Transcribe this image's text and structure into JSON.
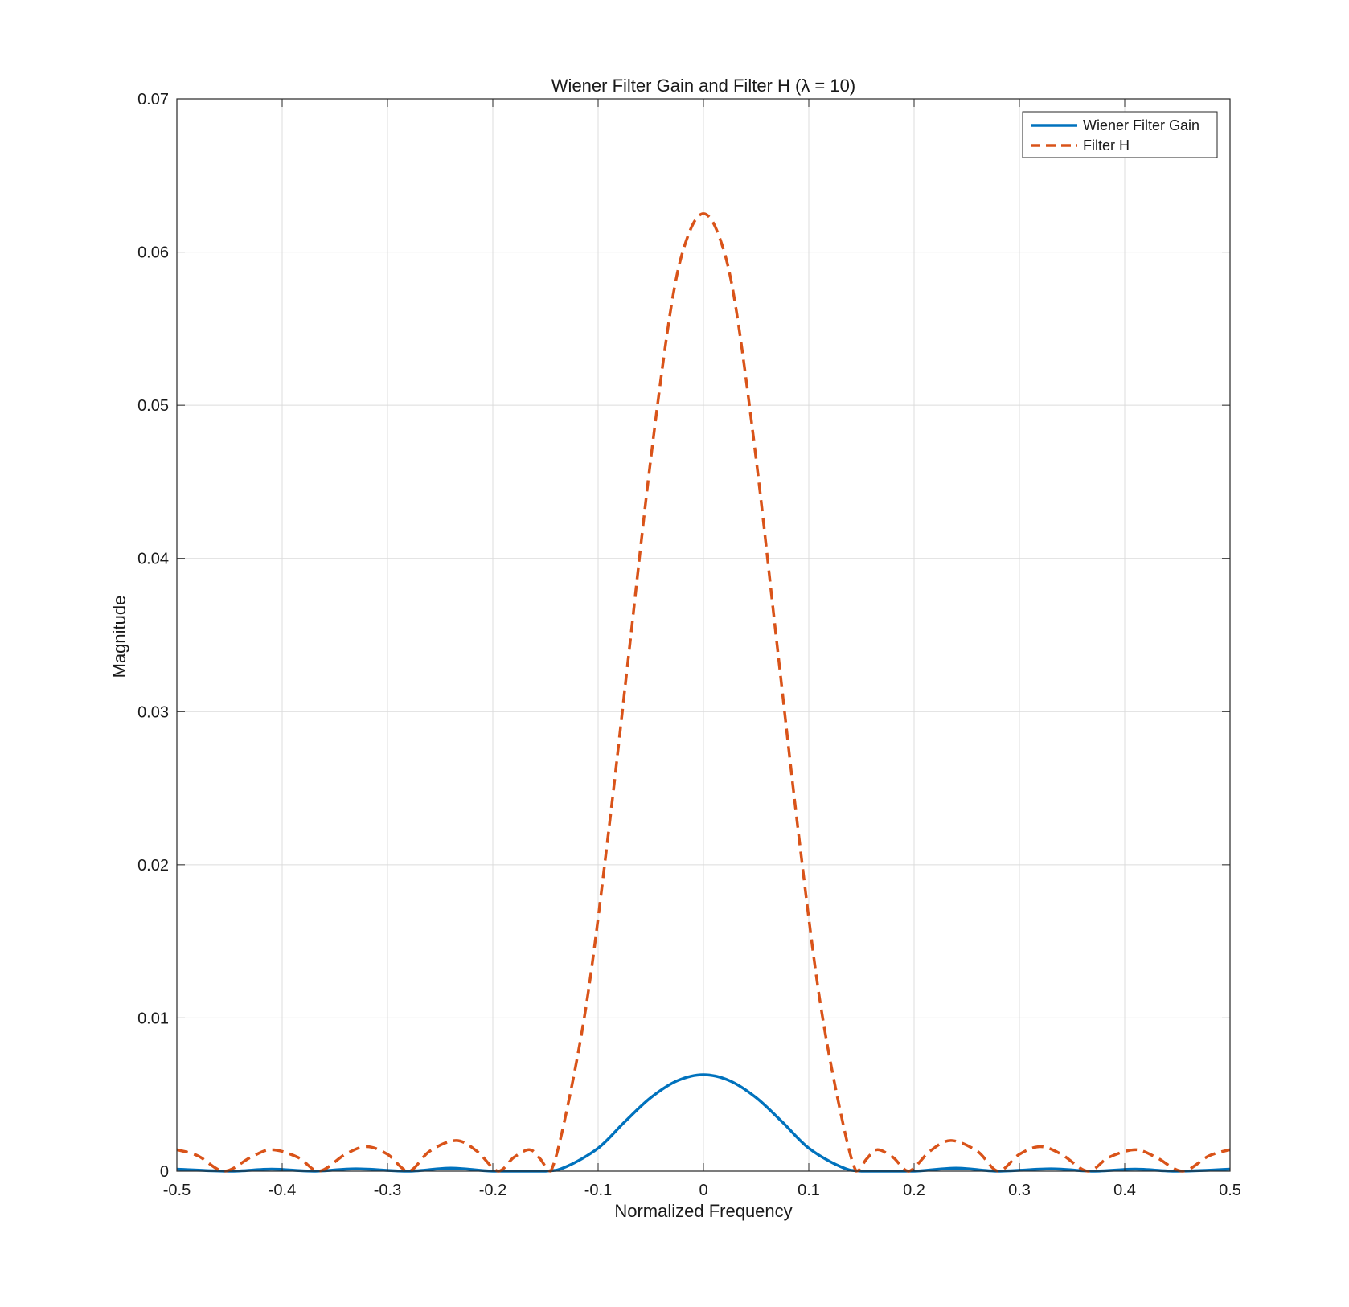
{
  "chart_data": {
    "type": "line",
    "title": "Wiener Filter Gain and Filter H (λ = 10)",
    "xlabel": "Normalized Frequency",
    "ylabel": "Magnitude",
    "xlim": [
      -0.5,
      0.5
    ],
    "ylim": [
      0,
      0.07
    ],
    "xticks": [
      -0.5,
      -0.4,
      -0.3,
      -0.2,
      -0.1,
      0,
      0.1,
      0.2,
      0.3,
      0.4,
      0.5
    ],
    "xtick_labels": [
      "-0.5",
      "-0.4",
      "-0.3",
      "-0.2",
      "-0.1",
      "0",
      "0.1",
      "0.2",
      "0.3",
      "0.4",
      "0.5"
    ],
    "yticks": [
      0,
      0.01,
      0.02,
      0.03,
      0.04,
      0.05,
      0.06,
      0.07
    ],
    "ytick_labels": [
      "0",
      "0.01",
      "0.02",
      "0.03",
      "0.04",
      "0.05",
      "0.06",
      "0.07"
    ],
    "grid": true,
    "legend_position": "top-right",
    "series": [
      {
        "name": "Wiener Filter Gain",
        "color": "#0072BD",
        "style": "solid",
        "x": [
          -0.5,
          -0.45,
          -0.41,
          -0.37,
          -0.33,
          -0.28,
          -0.24,
          -0.2,
          -0.15,
          -0.13,
          -0.1,
          -0.075,
          -0.05,
          -0.025,
          0,
          0.025,
          0.05,
          0.075,
          0.1,
          0.13,
          0.15,
          0.2,
          0.24,
          0.28,
          0.33,
          0.37,
          0.41,
          0.45,
          0.5
        ],
        "y": [
          0.00013,
          0.0,
          0.00013,
          0.0,
          0.00015,
          0.0,
          0.0002,
          0.0,
          0.0,
          0.0003,
          0.0015,
          0.0032,
          0.0048,
          0.0059,
          0.0063,
          0.0059,
          0.0048,
          0.0032,
          0.0015,
          0.0003,
          0.0,
          0.0,
          0.0002,
          0.0,
          0.00015,
          0.0,
          0.00013,
          0.0,
          0.00013
        ]
      },
      {
        "name": "Filter H",
        "color": "#D95319",
        "style": "dashed",
        "x": [
          -0.5,
          -0.48,
          -0.455,
          -0.43,
          -0.41,
          -0.385,
          -0.365,
          -0.34,
          -0.32,
          -0.3,
          -0.28,
          -0.26,
          -0.235,
          -0.215,
          -0.195,
          -0.18,
          -0.165,
          -0.155,
          -0.145,
          -0.13,
          -0.11,
          -0.09,
          -0.07,
          -0.05,
          -0.03,
          -0.015,
          0,
          0.015,
          0.03,
          0.05,
          0.07,
          0.09,
          0.11,
          0.13,
          0.145,
          0.155,
          0.165,
          0.18,
          0.195,
          0.215,
          0.235,
          0.26,
          0.28,
          0.3,
          0.32,
          0.34,
          0.365,
          0.385,
          0.41,
          0.43,
          0.455,
          0.48,
          0.5
        ],
        "y": [
          0.0014,
          0.001,
          0.0,
          0.0009,
          0.0014,
          0.0009,
          0.0,
          0.0011,
          0.0016,
          0.0011,
          0.0,
          0.0013,
          0.002,
          0.0013,
          0.0,
          0.0009,
          0.0014,
          0.0008,
          0.0,
          0.0039,
          0.0114,
          0.0222,
          0.0343,
          0.0465,
          0.0567,
          0.061,
          0.0625,
          0.061,
          0.0567,
          0.0465,
          0.0343,
          0.0222,
          0.0114,
          0.0039,
          0.0,
          0.0008,
          0.0014,
          0.0009,
          0.0,
          0.0013,
          0.002,
          0.0013,
          0.0,
          0.0011,
          0.0016,
          0.0011,
          0.0,
          0.0009,
          0.0014,
          0.0009,
          0.0,
          0.001,
          0.0014
        ]
      }
    ]
  }
}
